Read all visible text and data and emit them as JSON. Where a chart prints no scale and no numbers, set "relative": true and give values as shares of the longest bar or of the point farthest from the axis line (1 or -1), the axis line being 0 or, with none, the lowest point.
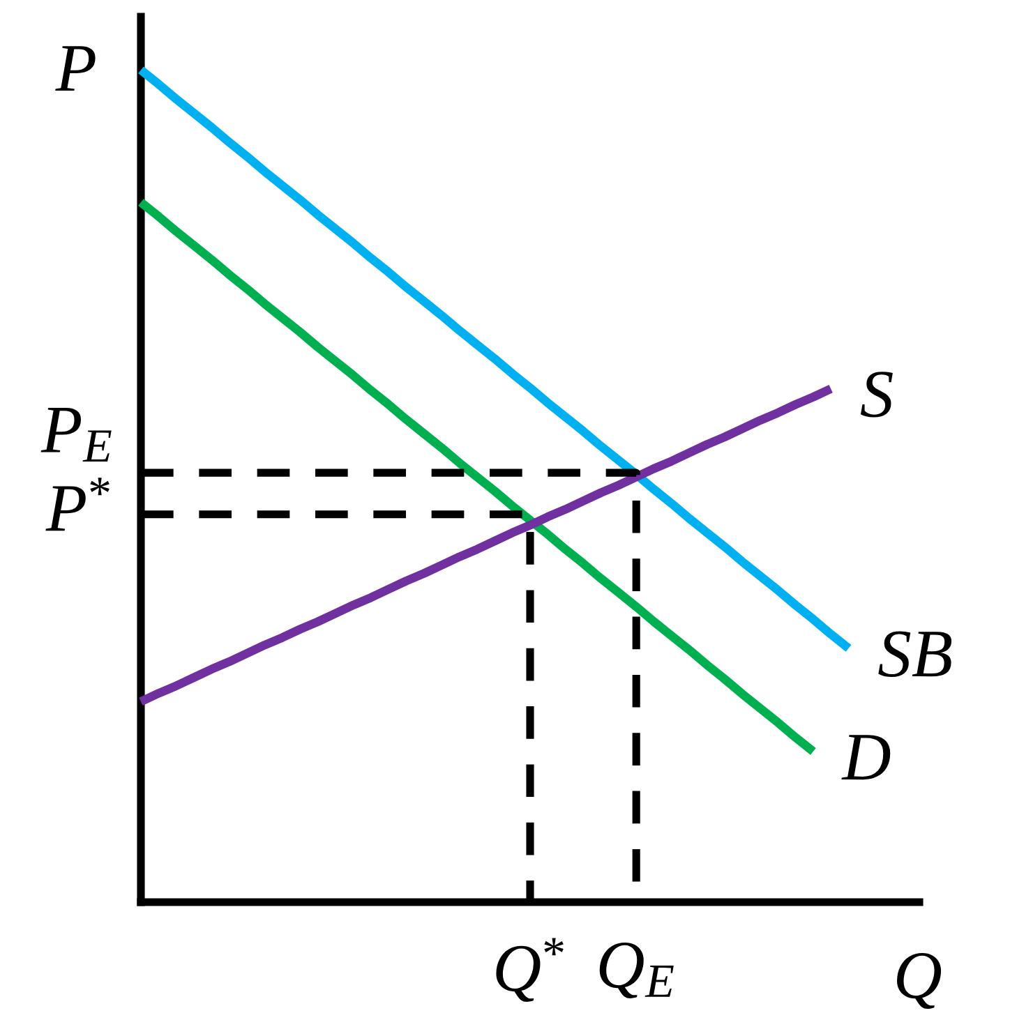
{
  "chart_data": {
    "type": "line",
    "relative": true,
    "xlabel": "Q",
    "ylabel": "P",
    "line_style": "solid",
    "categories": [
      null,
      null,
      null,
      null,
      null,
      null,
      null,
      null,
      null,
      null,
      null,
      null,
      null,
      null,
      null,
      null,
      null,
      null,
      null,
      null,
      null,
      null,
      "Q$^{*}$",
      null,
      null,
      null,
      null,
      null,
      "Q$_{E}$",
      null,
      null,
      null,
      null,
      null,
      null,
      null,
      null,
      null,
      null,
      null,
      null,
      null,
      null,
      null,
      null
    ],
    "series": [
      {
        "name": "SB",
        "color": "#00b0f0",
        "values": [
          1.0,
          0.983,
          0.965,
          0.948,
          0.931,
          0.913,
          0.896,
          0.878,
          0.861,
          0.844,
          0.826,
          0.809,
          0.792,
          0.774,
          0.757,
          0.739,
          0.722,
          0.705,
          0.687,
          0.67,
          0.653,
          0.635,
          0.618,
          0.6,
          0.583,
          0.566,
          0.548,
          0.531,
          0.514,
          0.496,
          0.479,
          0.461,
          0.444,
          0.427,
          0.409,
          0.392,
          0.375,
          0.357,
          0.34,
          0.322,
          0.305,
          null,
          null,
          null,
          null
        ]
      },
      {
        "name": "D",
        "color": "#00b050",
        "values": [
          0.841,
          0.824,
          0.806,
          0.789,
          0.772,
          0.754,
          0.737,
          0.719,
          0.702,
          0.685,
          0.667,
          0.65,
          0.633,
          0.615,
          0.598,
          0.58,
          0.563,
          0.546,
          0.528,
          0.511,
          0.494,
          0.476,
          0.459,
          0.442,
          0.424,
          0.407,
          0.389,
          0.372,
          0.355,
          0.337,
          0.32,
          0.303,
          0.285,
          0.268,
          0.25,
          0.233,
          0.216,
          0.198,
          0.181,
          null,
          null,
          null,
          null,
          null,
          null
        ]
      },
      {
        "name": "S",
        "color": "#7030a0",
        "values": [
          0.241,
          0.251,
          0.26,
          0.27,
          0.28,
          0.289,
          0.299,
          0.309,
          0.318,
          0.328,
          0.337,
          0.347,
          0.357,
          0.366,
          0.376,
          0.386,
          0.395,
          0.405,
          0.415,
          0.424,
          0.434,
          0.444,
          0.453,
          0.463,
          0.472,
          0.482,
          0.492,
          0.501,
          0.511,
          0.521,
          0.53,
          0.54,
          0.55,
          0.559,
          0.569,
          0.579,
          0.588,
          0.598,
          0.607,
          0.617,
          null,
          null,
          null,
          null,
          null
        ]
      },
      {
        "name": "P$_{E}$",
        "type": "step",
        "color": "#000000",
        "line_style": "dashed",
        "values": [
          0.516,
          0.516,
          0.516,
          0.516,
          0.516,
          0.516,
          0.516,
          0.516,
          0.516,
          0.516,
          0.516,
          0.516,
          0.516,
          0.516,
          0.516,
          0.516,
          0.516,
          0.516,
          0.516,
          0.516,
          0.516,
          0.516,
          0.516,
          0.516,
          0.516,
          0.516,
          0.516,
          0.516,
          0,
          null,
          null,
          null,
          null,
          null,
          null,
          null,
          null,
          null,
          null,
          null,
          null,
          null,
          null,
          null,
          null
        ]
      },
      {
        "name": "P$^{*}$",
        "type": "step",
        "color": "#000000",
        "line_style": "dashed",
        "values": [
          0.466,
          0.466,
          0.466,
          0.466,
          0.466,
          0.466,
          0.466,
          0.466,
          0.466,
          0.466,
          0.466,
          0.466,
          0.466,
          0.466,
          0.466,
          0.466,
          0.466,
          0.466,
          0.466,
          0.466,
          0.466,
          0.466,
          0,
          null,
          null,
          null,
          null,
          null,
          null,
          null,
          null,
          null,
          null,
          null,
          null,
          null,
          null,
          null,
          null,
          null,
          null,
          null,
          null,
          null,
          null
        ]
      }
    ]
  }
}
